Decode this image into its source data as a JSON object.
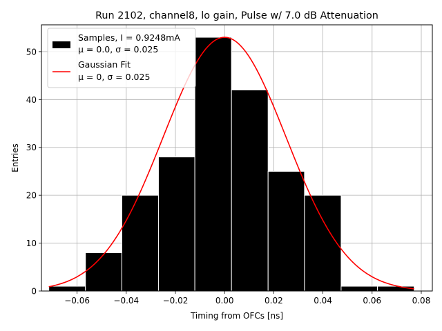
{
  "chart_data": {
    "type": "bar",
    "title": "Run 2102, channel8, lo gain, Pulse w/ 7.0 dB Attenuation",
    "xlabel": "Timing from OFCs [ns]",
    "ylabel": "Entries",
    "xlim": [
      -0.0745,
      0.0845
    ],
    "ylim": [
      0,
      55.6
    ],
    "grid": true,
    "x_ticks": [
      {
        "value": -0.06,
        "label": "−0.06"
      },
      {
        "value": -0.04,
        "label": "−0.04"
      },
      {
        "value": -0.02,
        "label": "−0.02"
      },
      {
        "value": 0.0,
        "label": "0.00"
      },
      {
        "value": 0.02,
        "label": "0.02"
      },
      {
        "value": 0.04,
        "label": "0.04"
      },
      {
        "value": 0.06,
        "label": "0.06"
      },
      {
        "value": 0.08,
        "label": "0.08"
      }
    ],
    "y_ticks": [
      {
        "value": 0,
        "label": "0"
      },
      {
        "value": 10,
        "label": "10"
      },
      {
        "value": 20,
        "label": "20"
      },
      {
        "value": 30,
        "label": "30"
      },
      {
        "value": 40,
        "label": "40"
      },
      {
        "value": 50,
        "label": "50"
      }
    ],
    "histogram": {
      "name": "Samples, I = 0.9248mA",
      "color": "#000000",
      "edgecolor": "#ffffff",
      "bin_edges": [
        -0.0715,
        -0.0566,
        -0.0418,
        -0.0269,
        -0.0121,
        0.0028,
        0.0177,
        0.0325,
        0.0474,
        0.0622,
        0.0771
      ],
      "counts": [
        1,
        8,
        20,
        28,
        53,
        42,
        25,
        20,
        1,
        1
      ]
    },
    "fit": {
      "name": "Gaussian Fit",
      "color": "#ff0000",
      "type": "gaussian",
      "amplitude": 53,
      "mu": 0,
      "sigma": 0.025,
      "x_range": [
        -0.0715,
        0.0771
      ]
    },
    "legend": {
      "position": "upper-left",
      "entries": [
        {
          "line1": "Samples, I = 0.9248mA",
          "line2": "μ = 0.0, σ = 0.025",
          "kind": "patch",
          "color": "#000000"
        },
        {
          "line1": "Gaussian Fit",
          "line2": "μ = 0, σ = 0.025",
          "kind": "line",
          "color": "#ff0000"
        }
      ]
    }
  }
}
